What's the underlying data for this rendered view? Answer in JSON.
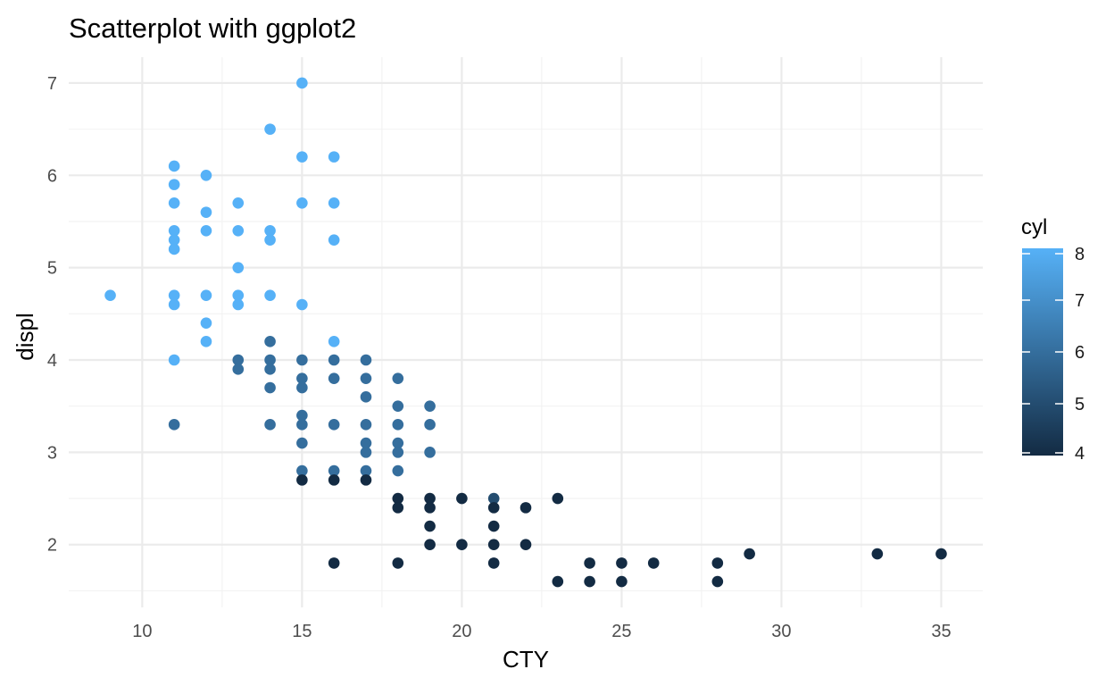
{
  "chart_data": {
    "type": "scatter",
    "title": "Scatterplot with ggplot2",
    "xlabel": "CTY",
    "ylabel": "displ",
    "xlim": [
      7.7,
      36.3
    ],
    "ylim": [
      1.32,
      7.28
    ],
    "x_ticks": [
      10,
      15,
      20,
      25,
      30,
      35
    ],
    "x_tick_labels": [
      "10",
      "15",
      "20",
      "25",
      "30",
      "35"
    ],
    "y_ticks": [
      2,
      3,
      4,
      5,
      6,
      7
    ],
    "y_tick_labels": [
      "2",
      "3",
      "4",
      "5",
      "6",
      "7"
    ],
    "grid": true,
    "color_by": "cyl",
    "legend": {
      "title": "cyl",
      "placement": "right",
      "min": 4,
      "max": 8,
      "ticks": [
        4,
        5,
        6,
        7,
        8
      ],
      "tick_labels": [
        "4",
        "5",
        "6",
        "7",
        "8"
      ],
      "color_low": "#132b43",
      "color_high": "#56b1f7"
    },
    "points": [
      [
        9,
        4.7,
        8
      ],
      [
        11,
        6.1,
        8
      ],
      [
        11,
        5.9,
        8
      ],
      [
        11,
        5.7,
        8
      ],
      [
        11,
        5.4,
        8
      ],
      [
        11,
        5.3,
        8
      ],
      [
        11,
        5.2,
        8
      ],
      [
        11,
        4.7,
        8
      ],
      [
        11,
        4.6,
        8
      ],
      [
        11,
        4.0,
        8
      ],
      [
        11,
        3.3,
        6
      ],
      [
        12,
        6.0,
        8
      ],
      [
        12,
        5.6,
        8
      ],
      [
        12,
        5.4,
        8
      ],
      [
        12,
        4.7,
        8
      ],
      [
        12,
        4.4,
        8
      ],
      [
        12,
        4.2,
        8
      ],
      [
        13,
        5.7,
        8
      ],
      [
        13,
        5.4,
        8
      ],
      [
        13,
        5.0,
        8
      ],
      [
        13,
        4.7,
        8
      ],
      [
        13,
        4.6,
        8
      ],
      [
        13,
        4.0,
        6
      ],
      [
        13,
        3.9,
        6
      ],
      [
        14,
        6.5,
        8
      ],
      [
        14,
        5.4,
        8
      ],
      [
        14,
        5.3,
        8
      ],
      [
        14,
        4.7,
        8
      ],
      [
        14,
        4.2,
        6
      ],
      [
        14,
        4.0,
        6
      ],
      [
        14,
        3.9,
        6
      ],
      [
        14,
        3.7,
        6
      ],
      [
        14,
        3.3,
        6
      ],
      [
        15,
        7.0,
        8
      ],
      [
        15,
        6.2,
        8
      ],
      [
        15,
        5.7,
        8
      ],
      [
        15,
        4.6,
        8
      ],
      [
        15,
        4.0,
        6
      ],
      [
        15,
        3.8,
        6
      ],
      [
        15,
        3.7,
        6
      ],
      [
        15,
        3.4,
        6
      ],
      [
        15,
        3.3,
        6
      ],
      [
        15,
        3.1,
        6
      ],
      [
        15,
        2.8,
        6
      ],
      [
        15,
        2.7,
        4
      ],
      [
        16,
        6.2,
        8
      ],
      [
        16,
        5.7,
        8
      ],
      [
        16,
        5.3,
        8
      ],
      [
        16,
        4.2,
        8
      ],
      [
        16,
        4.0,
        6
      ],
      [
        16,
        3.8,
        6
      ],
      [
        16,
        3.3,
        6
      ],
      [
        16,
        2.8,
        6
      ],
      [
        16,
        2.7,
        4
      ],
      [
        16,
        1.8,
        4
      ],
      [
        17,
        4.0,
        6
      ],
      [
        17,
        3.8,
        6
      ],
      [
        17,
        3.6,
        6
      ],
      [
        17,
        3.3,
        6
      ],
      [
        17,
        3.1,
        6
      ],
      [
        17,
        3.0,
        6
      ],
      [
        17,
        2.8,
        6
      ],
      [
        17,
        2.7,
        4
      ],
      [
        18,
        3.8,
        6
      ],
      [
        18,
        3.5,
        6
      ],
      [
        18,
        3.3,
        6
      ],
      [
        18,
        3.1,
        6
      ],
      [
        18,
        3.0,
        6
      ],
      [
        18,
        2.8,
        6
      ],
      [
        18,
        2.5,
        4
      ],
      [
        18,
        2.4,
        4
      ],
      [
        18,
        1.8,
        4
      ],
      [
        19,
        3.5,
        6
      ],
      [
        19,
        3.3,
        6
      ],
      [
        19,
        3.0,
        6
      ],
      [
        19,
        2.5,
        4
      ],
      [
        19,
        2.4,
        4
      ],
      [
        19,
        2.2,
        4
      ],
      [
        19,
        2.0,
        4
      ],
      [
        20,
        2.5,
        4
      ],
      [
        20,
        2.0,
        4
      ],
      [
        21,
        2.5,
        5
      ],
      [
        21,
        2.4,
        4
      ],
      [
        21,
        2.2,
        4
      ],
      [
        21,
        2.0,
        4
      ],
      [
        21,
        1.8,
        4
      ],
      [
        22,
        2.4,
        4
      ],
      [
        22,
        2.0,
        4
      ],
      [
        23,
        2.5,
        4
      ],
      [
        23,
        1.6,
        4
      ],
      [
        24,
        1.8,
        4
      ],
      [
        24,
        1.6,
        4
      ],
      [
        25,
        1.8,
        4
      ],
      [
        25,
        1.6,
        4
      ],
      [
        26,
        1.8,
        4
      ],
      [
        28,
        1.8,
        4
      ],
      [
        28,
        1.6,
        4
      ],
      [
        29,
        1.9,
        4
      ],
      [
        33,
        1.9,
        4
      ],
      [
        35,
        1.9,
        4
      ]
    ]
  }
}
